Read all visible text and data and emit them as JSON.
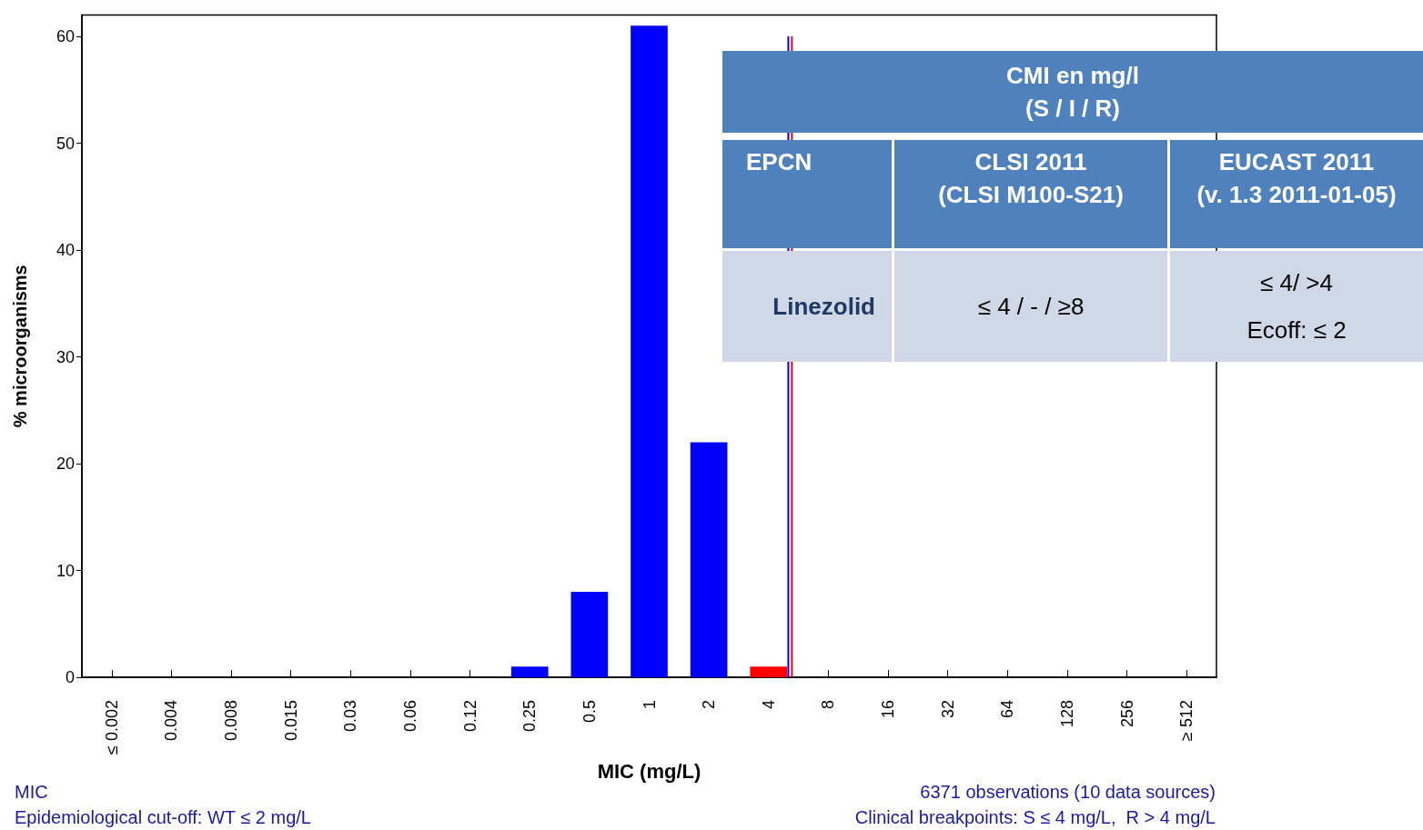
{
  "chart_data": {
    "type": "bar",
    "xlabel": "MIC (mg/L)",
    "ylabel": "% microorganisms",
    "categories": [
      "≤ 0.002",
      "0.004",
      "0.008",
      "0.015",
      "0.03",
      "0.06",
      "0.12",
      "0.25",
      "0.5",
      "1",
      "2",
      "4",
      "8",
      "16",
      "32",
      "64",
      "128",
      "256",
      "≥ 512"
    ],
    "values": [
      0,
      0,
      0,
      0,
      0,
      0,
      0,
      1,
      8,
      61,
      22,
      1,
      0,
      0,
      0,
      0,
      0,
      0,
      0
    ],
    "colors": [
      "#0000ff",
      "#0000ff",
      "#0000ff",
      "#0000ff",
      "#0000ff",
      "#0000ff",
      "#0000ff",
      "#0000ff",
      "#0000ff",
      "#0000ff",
      "#0000ff",
      "#ff0000",
      "#ff0000",
      "#ff0000",
      "#ff0000",
      "#ff0000",
      "#ff0000",
      "#ff0000",
      "#ff0000"
    ],
    "ylim": [
      0,
      62
    ],
    "yticks": [
      0,
      10,
      20,
      30,
      40,
      50,
      60
    ],
    "grid": false,
    "ref_lines": [
      {
        "axis": "x",
        "value": "4",
        "label": null,
        "color": "#0000ff"
      },
      {
        "axis": "x",
        "value": "4",
        "label": null,
        "color": "#ff0000"
      }
    ],
    "annotations": [
      "MIC",
      "Epidemiological cut-off: WT ≤ 2 mg/L",
      "6371 observations (10 data sources)",
      "Clinical breakpoints: S ≤ 4 mg/L,  R > 4 mg/L",
      "CMI en mg/l\n(S / I / R)",
      "EPCN",
      "CLSI 2011\n(CLSI M100-S21)",
      "EUCAST 2011\n(v. 1.3 2011-01-05)",
      "Linezolid",
      "≤ 4 / - / ≥8",
      "≤ 4/ >4\n\nEcoff: ≤ 2"
    ]
  }
}
